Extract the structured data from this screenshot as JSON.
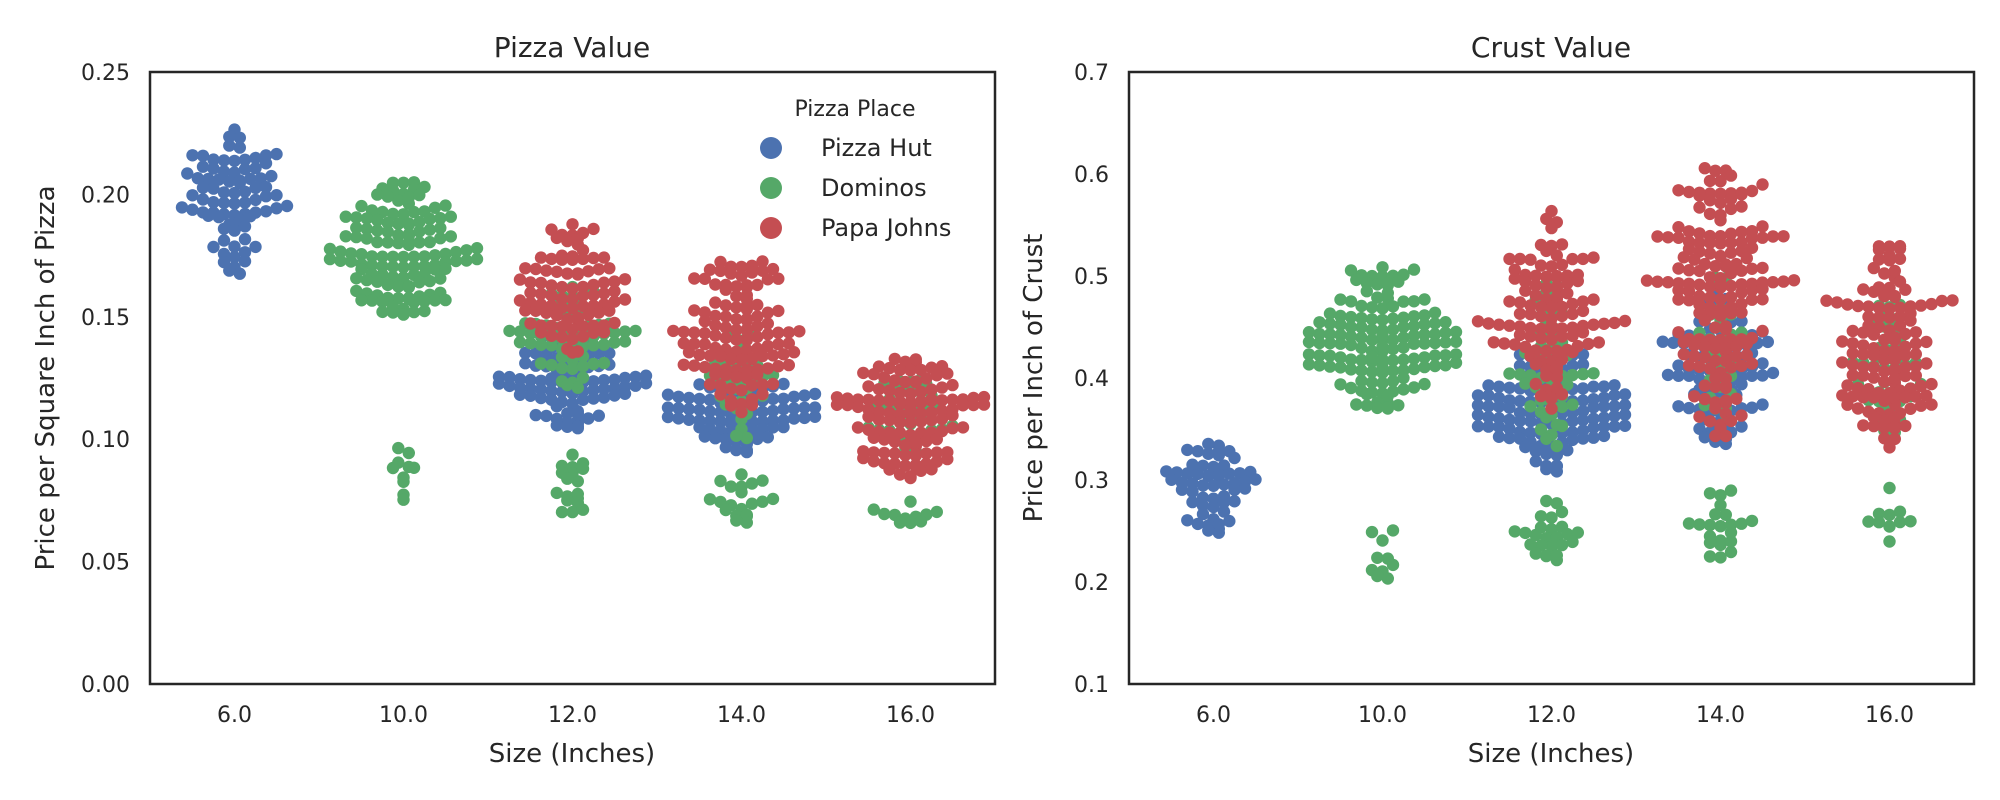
{
  "chart_data": [
    {
      "type": "scatter",
      "title": "Pizza Value",
      "xlabel": "Size (Inches)",
      "ylabel": "Price per Square Inch of Pizza",
      "categories": [
        "6.0",
        "10.0",
        "12.0",
        "14.0",
        "16.0"
      ],
      "ylim": [
        0.0,
        0.25
      ],
      "yticks": [
        "0.00",
        "0.05",
        "0.10",
        "0.15",
        "0.20",
        "0.25"
      ],
      "grid": false,
      "legend": {
        "title": "Pizza Place",
        "placement": "top-right",
        "entries": [
          "Pizza Hut",
          "Dominos",
          "Papa Johns"
        ]
      },
      "series": [
        {
          "name": "Pizza Hut",
          "color": "#4C72B0",
          "groups": [
            {
              "category": "6.0",
              "ranges": [
                [
                  0.165,
                  0.227,
                  80
                ]
              ]
            },
            {
              "category": "12.0",
              "ranges": [
                [
                  0.104,
                  0.145,
                  95
                ]
              ]
            },
            {
              "category": "14.0",
              "ranges": [
                [
                  0.094,
                  0.128,
                  85
                ]
              ]
            }
          ]
        },
        {
          "name": "Dominos",
          "color": "#55A868",
          "groups": [
            {
              "category": "10.0",
              "ranges": [
                [
                  0.15,
                  0.205,
                  130
                ],
                [
                  0.075,
                  0.101,
                  10
                ]
              ]
            },
            {
              "category": "12.0",
              "ranges": [
                [
                  0.12,
                  0.165,
                  65
                ],
                [
                  0.068,
                  0.095,
                  18
                ]
              ]
            },
            {
              "category": "14.0",
              "ranges": [
                [
                  0.1,
                  0.145,
                  35
                ],
                [
                  0.063,
                  0.086,
                  20
                ]
              ]
            },
            {
              "category": "16.0",
              "ranges": [
                [
                  0.09,
                  0.128,
                  40
                ],
                [
                  0.059,
                  0.078,
                  12
                ]
              ]
            }
          ]
        },
        {
          "name": "Papa Johns",
          "color": "#C44E52",
          "groups": [
            {
              "category": "12.0",
              "ranges": [
                [
                  0.13,
                  0.189,
                  90
                ]
              ]
            },
            {
              "category": "14.0",
              "ranges": [
                [
                  0.11,
                  0.174,
                  120
                ]
              ]
            },
            {
              "category": "16.0",
              "ranges": [
                [
                  0.084,
                  0.133,
                  120
                ]
              ]
            }
          ]
        }
      ]
    },
    {
      "type": "scatter",
      "title": "Crust Value",
      "xlabel": "Size (Inches)",
      "ylabel": "Price per Inch of Crust",
      "categories": [
        "6.0",
        "10.0",
        "12.0",
        "14.0",
        "16.0"
      ],
      "ylim": [
        0.1,
        0.7
      ],
      "yticks": [
        "0.1",
        "0.2",
        "0.3",
        "0.4",
        "0.5",
        "0.6",
        "0.7"
      ],
      "grid": false,
      "series": [
        {
          "name": "Pizza Hut",
          "color": "#4C72B0",
          "groups": [
            {
              "category": "6.0",
              "ranges": [
                [
                  0.248,
                  0.34,
                  55
                ]
              ]
            },
            {
              "category": "12.0",
              "ranges": [
                [
                  0.308,
                  0.43,
                  120
                ]
              ]
            },
            {
              "category": "14.0",
              "ranges": [
                [
                  0.332,
                  0.48,
                  95
                ]
              ]
            }
          ]
        },
        {
          "name": "Dominos",
          "color": "#55A868",
          "groups": [
            {
              "category": "10.0",
              "ranges": [
                [
                  0.37,
                  0.51,
                  140
                ],
                [
                  0.188,
                  0.253,
                  10
                ]
              ]
            },
            {
              "category": "12.0",
              "ranges": [
                [
                  0.33,
                  0.495,
                  60
                ],
                [
                  0.208,
                  0.283,
                  25
                ]
              ]
            },
            {
              "category": "14.0",
              "ranges": [
                [
                  0.36,
                  0.5,
                  30
                ],
                [
                  0.222,
                  0.302,
                  22
                ]
              ]
            },
            {
              "category": "16.0",
              "ranges": [
                [
                  0.34,
                  0.48,
                  45
                ],
                [
                  0.237,
                  0.312,
                  10
                ]
              ]
            }
          ]
        },
        {
          "name": "Papa Johns",
          "color": "#C44E52",
          "groups": [
            {
              "category": "12.0",
              "ranges": [
                [
                  0.36,
                  0.566,
                  110
                ]
              ]
            },
            {
              "category": "14.0",
              "ranges": [
                [
                  0.34,
                  0.608,
                  170
                ]
              ]
            },
            {
              "category": "16.0",
              "ranges": [
                [
                  0.33,
                  0.531,
                  130
                ]
              ]
            }
          ]
        }
      ]
    }
  ]
}
